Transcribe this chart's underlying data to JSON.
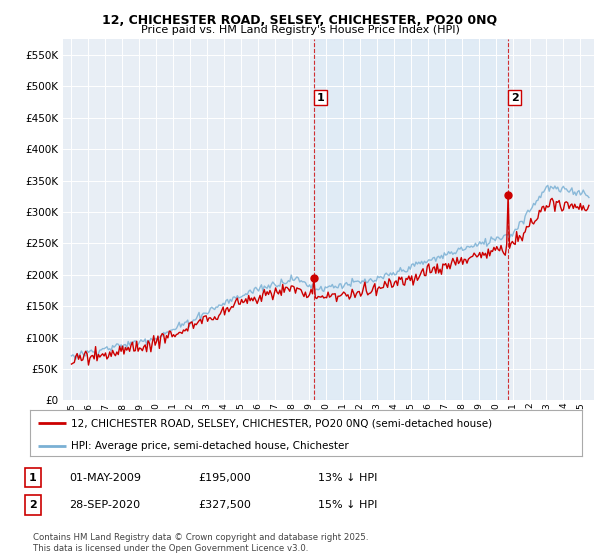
{
  "title_line1": "12, CHICHESTER ROAD, SELSEY, CHICHESTER, PO20 0NQ",
  "title_line2": "Price paid vs. HM Land Registry's House Price Index (HPI)",
  "legend_line1": "12, CHICHESTER ROAD, SELSEY, CHICHESTER, PO20 0NQ (semi-detached house)",
  "legend_line2": "HPI: Average price, semi-detached house, Chichester",
  "footnote": "Contains HM Land Registry data © Crown copyright and database right 2025.\nThis data is licensed under the Open Government Licence v3.0.",
  "price_color": "#cc0000",
  "hpi_color": "#7ab0d4",
  "shade_color": "#dce9f5",
  "annotation1_label": "1",
  "annotation1_date": "01-MAY-2009",
  "annotation1_price": "£195,000",
  "annotation1_hpi": "13% ↓ HPI",
  "annotation2_label": "2",
  "annotation2_date": "28-SEP-2020",
  "annotation2_price": "£327,500",
  "annotation2_hpi": "15% ↓ HPI",
  "ylim_max": 575000,
  "background_color": "#e8eef5",
  "vline_color": "#cc0000"
}
